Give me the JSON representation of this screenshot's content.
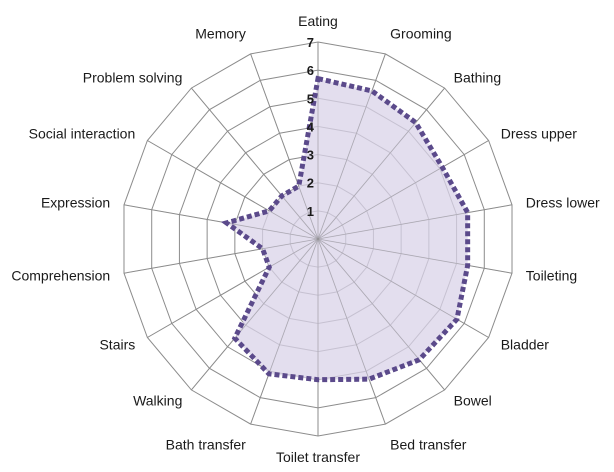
{
  "chart_data": {
    "type": "radar",
    "categories": [
      "Eating",
      "Grooming",
      "Bathing",
      "Dress upper",
      "Dress lower",
      "Toileting",
      "Bladder",
      "Bowel",
      "Bed transfer",
      "Toilet transfer",
      "Bath transfer",
      "Walking",
      "Stairs",
      "Comprehension",
      "Expression",
      "Social interaction",
      "Problem solving",
      "Memory"
    ],
    "series": [
      {
        "values": [
          5.7,
          5.6,
          5.4,
          5.1,
          5.4,
          5.4,
          5.7,
          5.6,
          5.3,
          5.0,
          5.1,
          4.6,
          2.0,
          2.0,
          3.3,
          2.0,
          2.0,
          2.0
        ],
        "color": "#5b4a8b",
        "fill": "#d9d3e8"
      }
    ],
    "rlim": [
      1,
      7
    ],
    "ticks": [
      "1",
      "2",
      "3",
      "4",
      "5",
      "6",
      "7"
    ],
    "grid": true,
    "line_style": "dotted"
  }
}
